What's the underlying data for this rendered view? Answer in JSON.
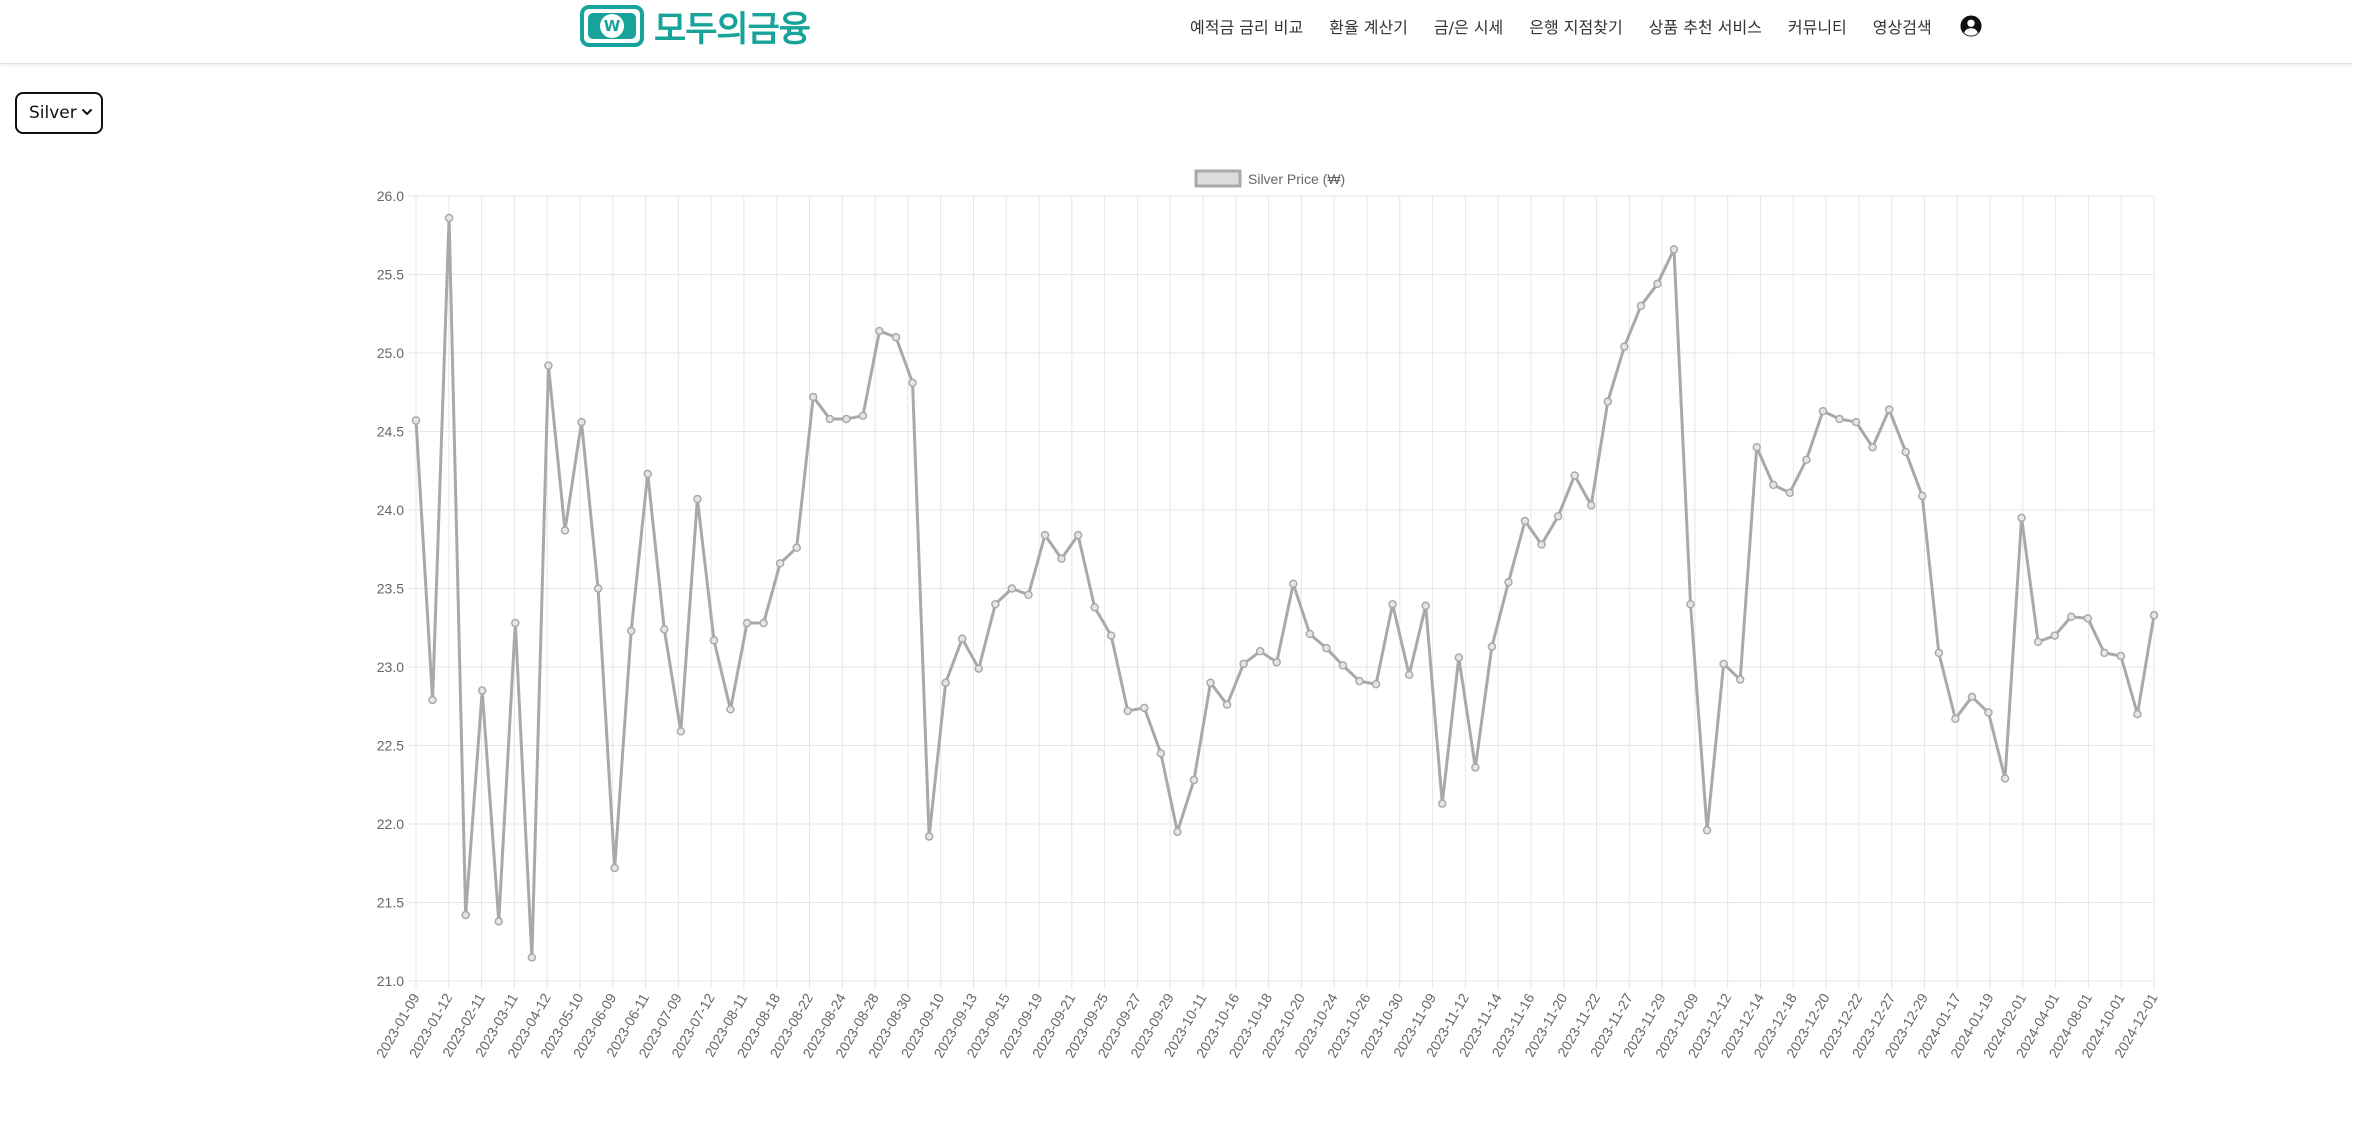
{
  "navbar": {
    "logo_glyph": "W",
    "logo_text": "모두의금융",
    "links": [
      "예적금 금리 비교",
      "환율 계산기",
      "금/은 시세",
      "은행 지점찾기",
      "상품 추천 서비스",
      "커뮤니티",
      "영상검색"
    ],
    "user_icon": "user-circle-icon"
  },
  "controls": {
    "metal_selected": "Silver"
  },
  "colors": {
    "brand": "#18a39a",
    "series_line": "#a9a9a9",
    "legend_fill": "#dcdcdc",
    "grid": "#e6e6e6"
  },
  "chart_data": {
    "type": "line",
    "title": "",
    "xlabel": "",
    "ylabel": "",
    "ylim": [
      21.0,
      26.0
    ],
    "yticks": [
      "26.0",
      "25.5",
      "25.0",
      "24.5",
      "24.0",
      "23.5",
      "23.0",
      "22.5",
      "22.0",
      "21.5",
      "21.0"
    ],
    "grid": true,
    "legend_position": "top-center",
    "x_tick_labels": [
      "2023-01-09",
      "2023-01-12",
      "2023-02-11",
      "2023-03-11",
      "2023-04-12",
      "2023-05-10",
      "2023-06-09",
      "2023-06-11",
      "2023-07-09",
      "2023-07-12",
      "2023-08-11",
      "2023-08-18",
      "2023-08-22",
      "2023-08-24",
      "2023-08-28",
      "2023-08-30",
      "2023-09-10",
      "2023-09-13",
      "2023-09-15",
      "2023-09-19",
      "2023-09-21",
      "2023-09-25",
      "2023-09-27",
      "2023-09-29",
      "2023-10-11",
      "2023-10-16",
      "2023-10-18",
      "2023-10-20",
      "2023-10-24",
      "2023-10-26",
      "2023-10-30",
      "2023-11-09",
      "2023-11-12",
      "2023-11-14",
      "2023-11-16",
      "2023-11-20",
      "2023-11-22",
      "2023-11-27",
      "2023-11-29",
      "2023-12-09",
      "2023-12-12",
      "2023-12-14",
      "2023-12-18",
      "2023-12-20",
      "2023-12-22",
      "2023-12-27",
      "2023-12-29",
      "2024-01-17",
      "2024-01-19",
      "2024-02-01",
      "2024-04-01",
      "2024-08-01",
      "2024-10-01",
      "2024-12-01"
    ],
    "series": [
      {
        "name": "Silver Price (₩)",
        "color": "#a9a9a9",
        "values": [
          24.57,
          22.79,
          25.86,
          21.42,
          22.85,
          21.38,
          23.28,
          21.15,
          24.92,
          23.87,
          24.56,
          23.5,
          21.72,
          23.23,
          24.23,
          23.24,
          22.59,
          24.07,
          23.17,
          22.73,
          23.28,
          23.28,
          23.66,
          23.76,
          24.72,
          24.58,
          24.58,
          24.6,
          25.14,
          25.1,
          24.81,
          21.92,
          22.9,
          23.18,
          22.99,
          23.4,
          23.5,
          23.46,
          23.84,
          23.69,
          23.84,
          23.38,
          23.2,
          22.72,
          22.74,
          22.45,
          21.95,
          22.28,
          22.9,
          22.76,
          23.02,
          23.1,
          23.03,
          23.53,
          23.21,
          23.12,
          23.01,
          22.91,
          22.89,
          23.4,
          22.95,
          23.39,
          22.13,
          23.06,
          22.36,
          23.13,
          23.54,
          23.93,
          23.78,
          23.96,
          24.22,
          24.03,
          24.69,
          25.04,
          25.3,
          25.44,
          25.66,
          23.4,
          21.96,
          23.02,
          22.92,
          24.4,
          24.16,
          24.11,
          24.32,
          24.63,
          24.58,
          24.56,
          24.4,
          24.64,
          24.37,
          24.09,
          23.09,
          22.67,
          22.81,
          22.71,
          22.29,
          23.95,
          23.16,
          23.2,
          23.32,
          23.31,
          23.09,
          23.07,
          22.7,
          23.33
        ]
      }
    ]
  }
}
